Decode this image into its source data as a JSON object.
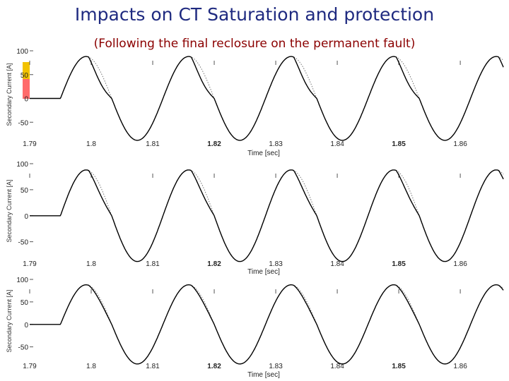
{
  "title": "Impacts on CT Saturation and protection",
  "subtitle": "(Following the final reclosure on the permanent fault)",
  "chart_data": [
    {
      "type": "line",
      "xlabel": "Time [sec]",
      "ylabel": "Secondary Current [A]",
      "x_ticks": [
        "1.79",
        "1.8",
        "1.81",
        "1.82",
        "1.83",
        "1.84",
        "1.85",
        "1.86"
      ],
      "y_ticks": [
        "100",
        "50",
        "0",
        "-50"
      ],
      "xlim": [
        1.79,
        1.867
      ],
      "ylim": [
        -60,
        100
      ],
      "fault_start": 1.795,
      "frequency_hz": 60,
      "peak": 88,
      "series": [
        {
          "style": "solid",
          "kind": "saturated",
          "saturation_depth": 0.45
        },
        {
          "style": "dotted",
          "kind": "ideal"
        }
      ]
    },
    {
      "type": "line",
      "xlabel": "Time [sec]",
      "ylabel": "Secondary Current [A]",
      "x_ticks": [
        "1.79",
        "1.8",
        "1.81",
        "1.82",
        "1.83",
        "1.84",
        "1.85",
        "1.86"
      ],
      "y_ticks": [
        "100",
        "50",
        "0",
        "-50"
      ],
      "xlim": [
        1.79,
        1.867
      ],
      "ylim": [
        -60,
        100
      ],
      "fault_start": 1.795,
      "frequency_hz": 60,
      "peak": 88,
      "series": [
        {
          "style": "solid",
          "kind": "saturated",
          "saturation_depth": 0.3
        },
        {
          "style": "dotted",
          "kind": "ideal"
        }
      ]
    },
    {
      "type": "line",
      "xlabel": "Time [sec]",
      "ylabel": "Secondary Current [A]",
      "x_ticks": [
        "1.79",
        "1.8",
        "1.81",
        "1.82",
        "1.83",
        "1.84",
        "1.85",
        "1.86"
      ],
      "y_ticks": [
        "100",
        "50",
        "0",
        "-50"
      ],
      "xlim": [
        1.79,
        1.867
      ],
      "ylim": [
        -60,
        100
      ],
      "fault_start": 1.795,
      "frequency_hz": 60,
      "peak": 88,
      "series": [
        {
          "style": "solid",
          "kind": "mild",
          "saturation_depth": 0.12
        },
        {
          "style": "dotted",
          "kind": "ideal"
        }
      ]
    }
  ]
}
